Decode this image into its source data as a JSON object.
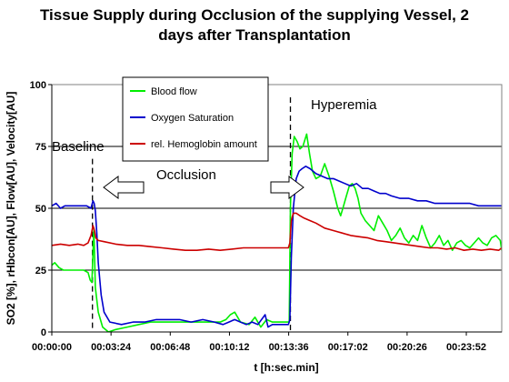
{
  "chart_data": {
    "type": "line",
    "title_line1": "Tissue Supply during Occlusion of the supplying Vessel, 2",
    "title_line2": "days after Transplantation",
    "xlabel": "t [h:sec.min]",
    "ylabel": "SO2 [%], rHbcon[AU], Flow[AU], Velocity[AU]",
    "xlim": [
      0,
      1550
    ],
    "ylim": [
      0,
      100
    ],
    "x_unit": "seconds (axis labels printed as h:min:sec)",
    "x_ticks": [
      {
        "x": 0,
        "label": "00:00:00"
      },
      {
        "x": 204,
        "label": "00:03:24"
      },
      {
        "x": 408,
        "label": "00:06:48"
      },
      {
        "x": 612,
        "label": "00:10:12"
      },
      {
        "x": 816,
        "label": "00:13:36"
      },
      {
        "x": 1020,
        "label": "00:17:02"
      },
      {
        "x": 1224,
        "label": "00:20:26"
      },
      {
        "x": 1428,
        "label": "00:23:52"
      }
    ],
    "y_ticks": [
      0,
      25,
      50,
      75,
      100
    ],
    "grid": {
      "horizontal": true,
      "vertical": false
    },
    "legend_placement": "top-center",
    "annotations": {
      "baseline": "Baseline",
      "occlusion": "Occlusion",
      "hyperemia": "Hyperemia"
    },
    "event_markers": [
      {
        "x": 140,
        "label": "occlusion start"
      },
      {
        "x": 822,
        "label": "occlusion release"
      }
    ],
    "series": [
      {
        "name": "Blood flow",
        "color": "#00ee00",
        "x": [
          0,
          10,
          25,
          40,
          60,
          90,
          110,
          125,
          132,
          138,
          145,
          150,
          160,
          175,
          195,
          220,
          260,
          300,
          340,
          380,
          420,
          460,
          500,
          540,
          580,
          600,
          615,
          630,
          650,
          680,
          700,
          720,
          740,
          760,
          790,
          818,
          822,
          828,
          835,
          845,
          855,
          865,
          878,
          888,
          898,
          910,
          925,
          940,
          955,
          970,
          985,
          995,
          1005,
          1015,
          1025,
          1035,
          1045,
          1055,
          1065,
          1080,
          1095,
          1110,
          1125,
          1140,
          1155,
          1170,
          1185,
          1200,
          1215,
          1230,
          1245,
          1260,
          1275,
          1290,
          1305,
          1320,
          1335,
          1350,
          1365,
          1380,
          1395,
          1410,
          1425,
          1440,
          1455,
          1470,
          1485,
          1500,
          1515,
          1530,
          1545,
          1550
        ],
        "values": [
          27,
          28,
          26,
          25,
          25,
          25,
          25,
          24,
          21,
          20,
          42,
          18,
          8,
          2,
          0,
          1,
          2,
          3,
          4,
          4,
          4,
          4,
          4,
          4,
          4,
          5,
          7,
          8,
          4,
          3,
          6,
          2,
          5,
          4,
          4,
          4,
          50,
          72,
          79,
          77,
          74,
          75,
          80,
          72,
          65,
          62,
          63,
          68,
          63,
          57,
          50,
          47,
          51,
          55,
          59,
          60,
          58,
          54,
          48,
          45,
          43,
          41,
          47,
          44,
          41,
          37,
          39,
          42,
          38,
          36,
          39,
          37,
          43,
          38,
          34,
          36,
          39,
          35,
          37,
          33,
          36,
          37,
          35,
          34,
          36,
          38,
          36,
          35,
          38,
          39,
          37,
          33
        ]
      },
      {
        "name": "Oxygen Saturation",
        "color": "#0000cc",
        "x": [
          0,
          15,
          30,
          45,
          60,
          80,
          100,
          120,
          135,
          142,
          146,
          150,
          155,
          160,
          170,
          180,
          200,
          240,
          280,
          320,
          360,
          400,
          440,
          480,
          520,
          560,
          590,
          610,
          630,
          650,
          670,
          690,
          710,
          735,
          745,
          760,
          790,
          815,
          820,
          825,
          832,
          842,
          852,
          862,
          875,
          890,
          910,
          930,
          950,
          970,
          990,
          1010,
          1030,
          1050,
          1070,
          1090,
          1110,
          1130,
          1150,
          1170,
          1200,
          1230,
          1260,
          1290,
          1320,
          1350,
          1380,
          1410,
          1440,
          1470,
          1500,
          1530,
          1550
        ],
        "values": [
          51,
          52,
          50,
          51,
          51,
          51,
          51,
          51,
          50,
          53,
          52,
          49,
          40,
          28,
          15,
          8,
          4,
          3,
          4,
          4,
          5,
          5,
          5,
          4,
          5,
          4,
          3,
          4,
          5,
          4,
          3,
          4,
          3,
          7,
          2,
          3,
          3,
          3,
          5,
          30,
          50,
          62,
          65,
          66,
          67,
          66,
          64,
          63,
          62,
          62,
          61,
          60,
          59,
          60,
          58,
          58,
          57,
          56,
          56,
          55,
          54,
          54,
          53,
          53,
          52,
          52,
          52,
          52,
          52,
          51,
          51,
          51,
          51
        ]
      },
      {
        "name": "rel. Hemoglobin amount",
        "color": "#cc0000",
        "x": [
          0,
          30,
          60,
          90,
          110,
          125,
          135,
          142,
          147,
          152,
          160,
          180,
          220,
          260,
          300,
          340,
          380,
          420,
          460,
          500,
          540,
          580,
          620,
          660,
          700,
          740,
          780,
          815,
          820,
          825,
          832,
          842,
          855,
          870,
          890,
          910,
          940,
          970,
          1000,
          1030,
          1060,
          1090,
          1120,
          1150,
          1180,
          1210,
          1240,
          1270,
          1300,
          1330,
          1360,
          1390,
          1420,
          1450,
          1480,
          1510,
          1540,
          1550
        ],
        "values": [
          35,
          35.5,
          35,
          35.5,
          35,
          36,
          39,
          43,
          41,
          38,
          37,
          36.5,
          35.5,
          35,
          35,
          34.5,
          34,
          33.5,
          33,
          33,
          33.5,
          33,
          33.5,
          34,
          34,
          34,
          34,
          34,
          36,
          45,
          48,
          48,
          47,
          46,
          45,
          44,
          42,
          41,
          40,
          39,
          38.5,
          38,
          37,
          36.5,
          36,
          35.5,
          35,
          34.5,
          34,
          34,
          33.5,
          34,
          33,
          33.5,
          33,
          33.5,
          33,
          34
        ]
      }
    ]
  }
}
